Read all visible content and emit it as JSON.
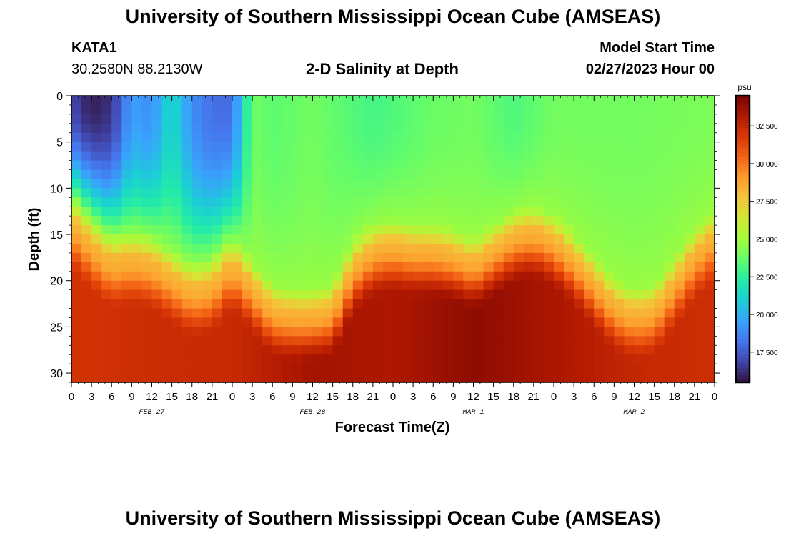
{
  "header": {
    "title": "University of Southern Mississippi Ocean Cube (AMSEAS)",
    "station_id": "KATA1",
    "coordinates": "30.2580N  88.2130W",
    "subtitle": "2-D Salinity at Depth",
    "model_start_label": "Model Start Time",
    "model_start_value": "02/27/2023 Hour 00"
  },
  "footer": {
    "repeated_title": "University of Southern Mississippi Ocean Cube (AMSEAS)"
  },
  "chart_data": {
    "type": "heatmap",
    "title": "2-D Salinity at Depth",
    "xlabel": "Forecast Time(Z)",
    "ylabel": "Depth (ft)",
    "x_units": "hours from model start",
    "xlim": [
      0,
      96
    ],
    "ylim": [
      0,
      31
    ],
    "y_inverted": true,
    "x_tick_labels": [
      "0",
      "3",
      "6",
      "9",
      "12",
      "15",
      "18",
      "21",
      "0",
      "3",
      "6",
      "9",
      "12",
      "15",
      "18",
      "21",
      "0",
      "3",
      "6",
      "9",
      "12",
      "15",
      "18",
      "21",
      "0",
      "3",
      "6",
      "9",
      "12",
      "15",
      "18",
      "21",
      "0"
    ],
    "x_tick_step_hours": 3,
    "day_labels": [
      {
        "label": "FEB 27",
        "hour": 12
      },
      {
        "label": "FEB 28",
        "hour": 36
      },
      {
        "label": "MAR 1",
        "hour": 60
      },
      {
        "label": "MAR 2",
        "hour": 84
      }
    ],
    "y_ticks": [
      0,
      5,
      10,
      15,
      20,
      25,
      30
    ],
    "colorbar": {
      "units": "psu",
      "min": 15.5,
      "max": 34.5,
      "ticks": [
        17.5,
        20.0,
        22.5,
        25.0,
        27.5,
        30.0,
        32.5
      ],
      "tick_labels": [
        "17.500",
        "20.000",
        "22.500",
        "25.000",
        "27.500",
        "30.000",
        "32.500"
      ],
      "colormap": [
        "#30123b",
        "#4145ab",
        "#4675ed",
        "#39a2fc",
        "#1bcfd4",
        "#24eca6",
        "#61fc6c",
        "#a4fc3b",
        "#d1e834",
        "#f3c63a",
        "#fe9b2d",
        "#f36315",
        "#d93806",
        "#b11901",
        "#7a0403"
      ]
    },
    "surface_salinity_psu": [
      {
        "hour": 0,
        "value": 17.0
      },
      {
        "hour": 3,
        "value": 15.8
      },
      {
        "hour": 6,
        "value": 16.3
      },
      {
        "hour": 9,
        "value": 19.5
      },
      {
        "hour": 12,
        "value": 19.0
      },
      {
        "hour": 15,
        "value": 21.5
      },
      {
        "hour": 18,
        "value": 19.0
      },
      {
        "hour": 21,
        "value": 18.0
      },
      {
        "hour": 24,
        "value": 18.0
      },
      {
        "hour": 27,
        "value": 24.0
      },
      {
        "hour": 30,
        "value": 23.5
      },
      {
        "hour": 36,
        "value": 24.0
      },
      {
        "hour": 45,
        "value": 23.0
      },
      {
        "hour": 54,
        "value": 23.8
      },
      {
        "hour": 60,
        "value": 24.0
      },
      {
        "hour": 66,
        "value": 23.2
      },
      {
        "hour": 72,
        "value": 24.0
      },
      {
        "hour": 84,
        "value": 24.0
      },
      {
        "hour": 96,
        "value": 24.2
      }
    ],
    "halocline_top_depth_ft": [
      {
        "hour": 0,
        "value": 11.0
      },
      {
        "hour": 3,
        "value": 13.5
      },
      {
        "hour": 6,
        "value": 15.5
      },
      {
        "hour": 9,
        "value": 15.0
      },
      {
        "hour": 12,
        "value": 15.5
      },
      {
        "hour": 15,
        "value": 17.0
      },
      {
        "hour": 18,
        "value": 18.5
      },
      {
        "hour": 21,
        "value": 18.0
      },
      {
        "hour": 24,
        "value": 15.5
      },
      {
        "hour": 27,
        "value": 18.0
      },
      {
        "hour": 30,
        "value": 20.5
      },
      {
        "hour": 33,
        "value": 21.0
      },
      {
        "hour": 36,
        "value": 21.0
      },
      {
        "hour": 39,
        "value": 20.5
      },
      {
        "hour": 42,
        "value": 16.0
      },
      {
        "hour": 45,
        "value": 14.0
      },
      {
        "hour": 48,
        "value": 13.5
      },
      {
        "hour": 51,
        "value": 14.0
      },
      {
        "hour": 54,
        "value": 14.0
      },
      {
        "hour": 57,
        "value": 14.5
      },
      {
        "hour": 60,
        "value": 15.5
      },
      {
        "hour": 63,
        "value": 14.0
      },
      {
        "hour": 66,
        "value": 12.5
      },
      {
        "hour": 69,
        "value": 12.0
      },
      {
        "hour": 72,
        "value": 13.0
      },
      {
        "hour": 75,
        "value": 15.0
      },
      {
        "hour": 78,
        "value": 17.5
      },
      {
        "hour": 81,
        "value": 20.0
      },
      {
        "hour": 84,
        "value": 21.0
      },
      {
        "hour": 87,
        "value": 20.5
      },
      {
        "hour": 90,
        "value": 17.5
      },
      {
        "hour": 93,
        "value": 14.5
      },
      {
        "hour": 96,
        "value": 12.5
      }
    ],
    "bottom_salinity_psu": [
      {
        "hour": 0,
        "value": 32.0
      },
      {
        "hour": 12,
        "value": 32.3
      },
      {
        "hour": 24,
        "value": 32.4
      },
      {
        "hour": 36,
        "value": 33.5
      },
      {
        "hour": 48,
        "value": 33.2
      },
      {
        "hour": 60,
        "value": 34.0
      },
      {
        "hour": 72,
        "value": 33.3
      },
      {
        "hour": 84,
        "value": 32.5
      },
      {
        "hour": 96,
        "value": 32.2
      }
    ]
  }
}
